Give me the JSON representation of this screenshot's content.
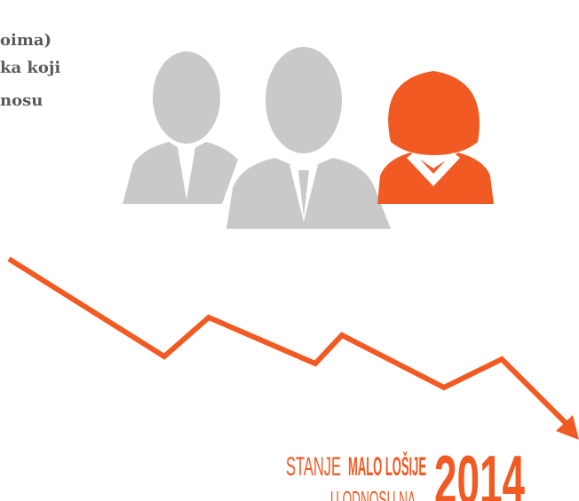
{
  "text_block": {
    "lines": [
      "oima)",
      "ka koji",
      "nosu"
    ]
  },
  "caption": {
    "prefix": "STANJE",
    "emphasis": "MALO LOŠIJE",
    "suffix": "U ODNOSU NA",
    "year": "2014"
  }
}
